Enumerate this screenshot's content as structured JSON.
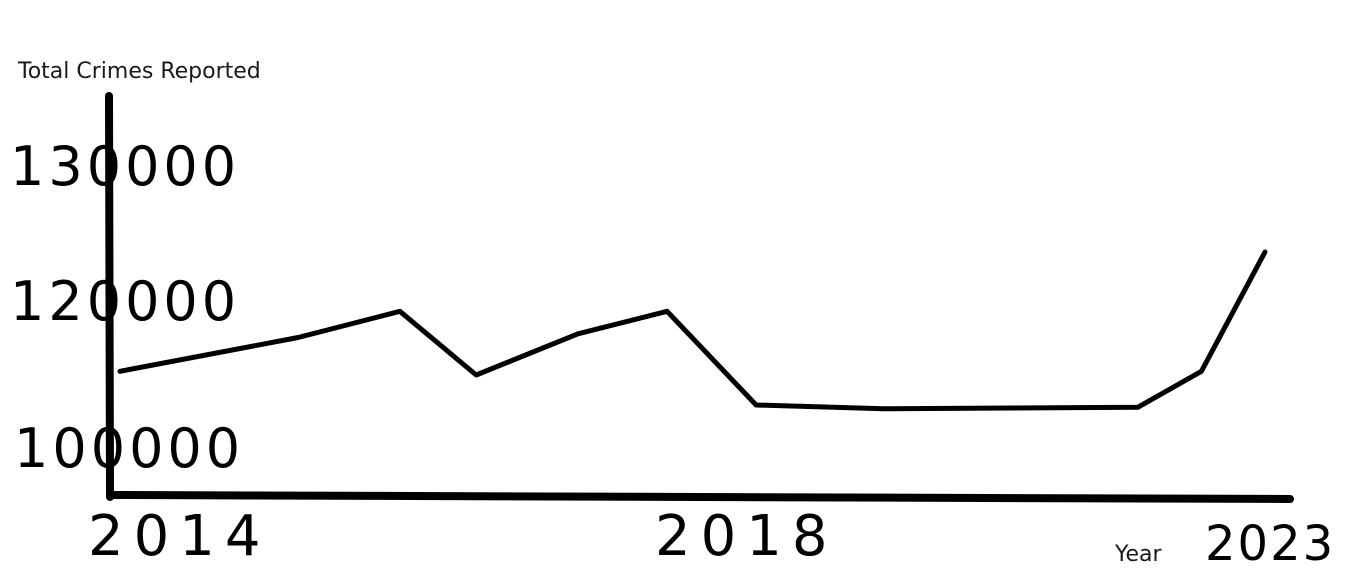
{
  "chart_data": {
    "type": "line",
    "title": "",
    "ylabel": "Total Crimes Reported",
    "xlabel": "Year",
    "x_ticks": [
      "2014",
      "2018",
      "2023"
    ],
    "y_ticks": [
      "100000",
      "120000",
      "130000"
    ],
    "series": [
      {
        "values": [
          {
            "x": 2014.0,
            "y": 110500
          },
          {
            "x": 2015.4,
            "y": 115000
          },
          {
            "x": 2016.2,
            "y": 118500
          },
          {
            "x": 2016.8,
            "y": 110000
          },
          {
            "x": 2017.6,
            "y": 115500
          },
          {
            "x": 2018.3,
            "y": 118500
          },
          {
            "x": 2019.0,
            "y": 106000
          },
          {
            "x": 2020.0,
            "y": 105500
          },
          {
            "x": 2021.0,
            "y": 105600
          },
          {
            "x": 2022.0,
            "y": 105700
          },
          {
            "x": 2022.5,
            "y": 110500
          },
          {
            "x": 2023.0,
            "y": 124000
          }
        ]
      }
    ],
    "color": "#000000",
    "grid": false,
    "legend": "none"
  }
}
